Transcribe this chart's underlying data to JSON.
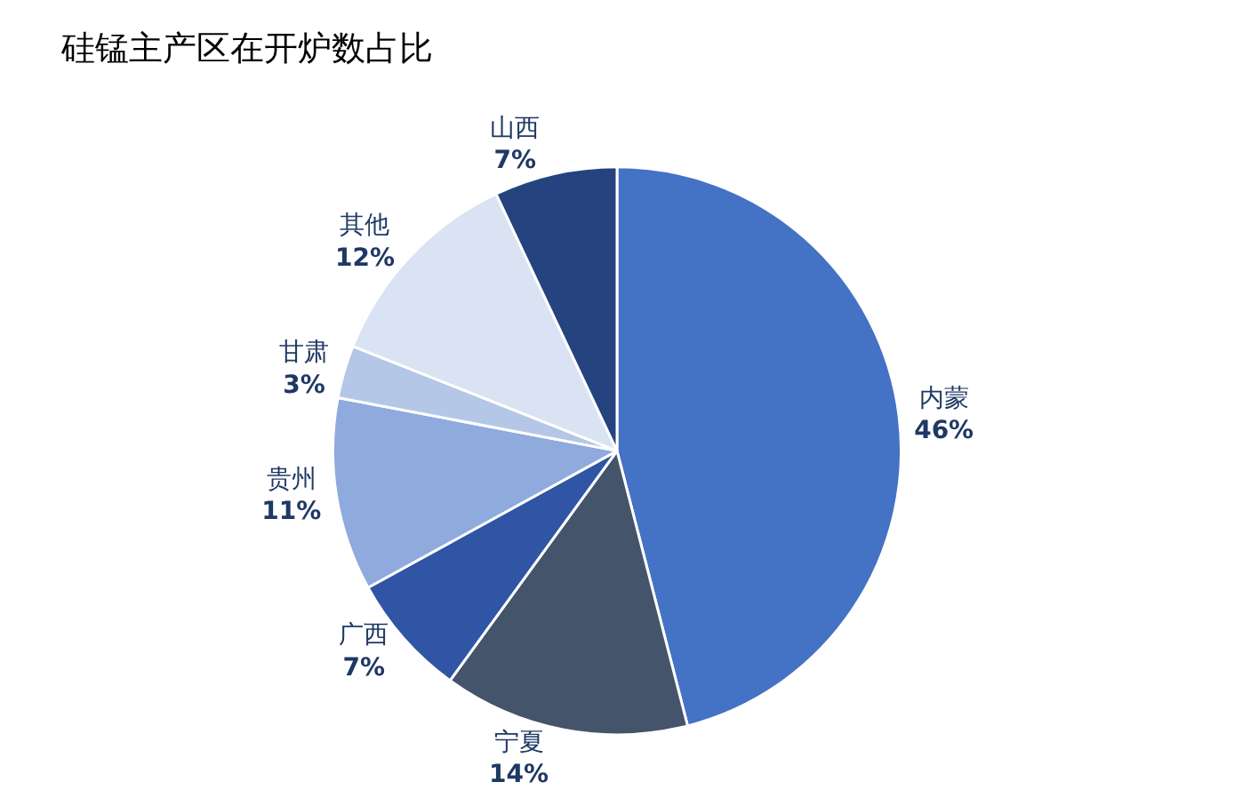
{
  "chart_data": {
    "type": "pie",
    "title": "硅锰主产区在开炉数占比",
    "categories": [
      "内蒙",
      "宁夏",
      "广西",
      "贵州",
      "甘肃",
      "其他",
      "山西"
    ],
    "values": [
      46,
      14,
      7,
      11,
      3,
      12,
      7
    ],
    "colors": [
      "#4472c4",
      "#44546a",
      "#2f55a4",
      "#8faadc",
      "#b4c7e7",
      "#dae3f3",
      "#24437f"
    ],
    "value_labels": [
      "46%",
      "14%",
      "7%",
      "11%",
      "3%",
      "12%",
      "7%"
    ],
    "legend": false
  }
}
